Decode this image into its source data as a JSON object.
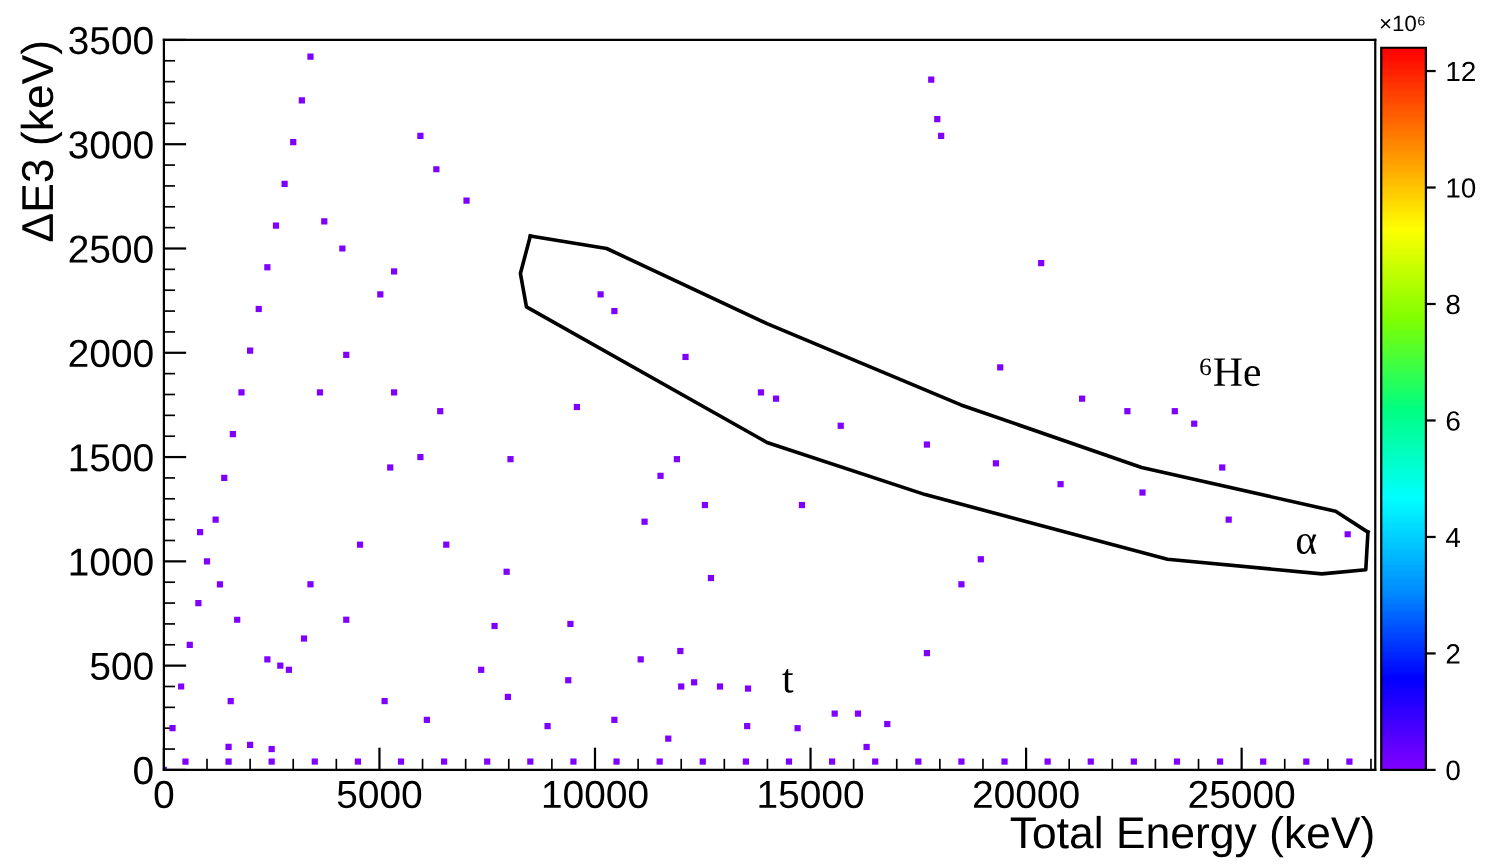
{
  "chart_data": {
    "type": "scatter",
    "xlabel": "Total Energy (keV)",
    "ylabel": "ΔE3 (keV)",
    "clabel": "×10⁶",
    "xlim": [
      0,
      28100
    ],
    "ylim": [
      0,
      3500
    ],
    "xticks": [
      0,
      5000,
      10000,
      15000,
      20000,
      25000
    ],
    "yticks": [
      0,
      500,
      1000,
      1500,
      2000,
      2500,
      3000,
      3500
    ],
    "clim": [
      0,
      12.4
    ],
    "cticks": [
      0,
      2,
      4,
      6,
      8,
      10,
      12
    ],
    "grid": false,
    "legend": false,
    "marker": "square",
    "series": [
      {
        "color": "#8000ff",
        "x": [
          0,
          200,
          400,
          600,
          800,
          1000,
          1200,
          1400,
          1600,
          1800,
          2000,
          2200,
          2400,
          2600,
          2800,
          3000,
          3200,
          3400
        ],
        "values": [
          0,
          200,
          400,
          600,
          800,
          1000,
          1200,
          1400,
          1610,
          1810,
          2010,
          2210,
          2410,
          2610,
          2810,
          3010,
          3210,
          3420
        ]
      },
      {
        "color": "#8000ff",
        "x": [
          500,
          1500,
          2500,
          3500,
          4500,
          5500,
          6500,
          7500,
          8500,
          9500,
          10500,
          11500,
          12500,
          13500,
          14500,
          15500,
          16500,
          17500,
          18500,
          19500,
          20500,
          21500,
          22500,
          23500,
          24500,
          25500,
          26500,
          27500
        ],
        "values": [
          40,
          40,
          40,
          40,
          40,
          40,
          40,
          40,
          40,
          40,
          40,
          40,
          40,
          40,
          40,
          40,
          40,
          40,
          40,
          40,
          40,
          40,
          40,
          40,
          40,
          40,
          40,
          40
        ]
      },
      {
        "color": "#8000ff",
        "x": [
          5950,
          6320,
          7020,
          3720,
          4140,
          5340,
          5020,
          4230,
          3620,
          5340,
          6410,
          5950
        ],
        "values": [
          3040,
          2880,
          2730,
          2630,
          2500,
          2390,
          2280,
          1990,
          1810,
          1810,
          1720,
          1500
        ]
      },
      {
        "color": "#8000ff",
        "x": [
          5250,
          8040,
          9580,
          11900,
          11520,
          12550,
          11150,
          12690,
          4550,
          6550,
          7950,
          9430
        ],
        "values": [
          1450,
          1490,
          1740,
          1490,
          1410,
          1270,
          1190,
          920,
          1080,
          1080,
          950,
          700
        ]
      },
      {
        "color": "#8000ff",
        "x": [
          7670,
          840,
          1300,
          1700,
          1550,
          3400,
          3250,
          4230,
          5120,
          6100,
          7360,
          7980
        ],
        "values": [
          690,
          1140,
          890,
          720,
          330,
          890,
          630,
          720,
          330,
          240,
          480,
          350
        ]
      },
      {
        "color": "#8000ff",
        "x": [
          8900,
          9380,
          10450,
          11060,
          11700,
          11980,
          13530,
          15560,
          16100,
          16780,
          14700,
          16300
        ],
        "values": [
          210,
          430,
          240,
          530,
          150,
          570,
          210,
          270,
          270,
          220,
          200,
          110
        ]
      },
      {
        "color": "#8000ff",
        "x": [
          2400,
          2700,
          2900,
          12000,
          12300,
          12900,
          13550,
          1500,
          2000,
          2500,
          17800,
          17940
        ],
        "values": [
          530,
          500,
          480,
          400,
          420,
          400,
          390,
          110,
          120,
          100,
          3310,
          3120
        ]
      },
      {
        "color": "#8000ff",
        "x": [
          18030,
          20350,
          18950,
          18500,
          17700,
          24550,
          24700,
          27460,
          14800,
          21300,
          19400,
          22350
        ],
        "values": [
          3040,
          2430,
          1010,
          890,
          560,
          1450,
          1200,
          1130,
          1270,
          1780,
          1930,
          1720
        ]
      },
      {
        "color": "#8000ff",
        "x": [
          23450,
          23900,
          15700,
          17700,
          19300,
          20800,
          22700,
          14200,
          13850,
          12100,
          10450,
          10130
        ],
        "values": [
          1720,
          1660,
          1650,
          1560,
          1470,
          1370,
          1330,
          1780,
          1810,
          1980,
          2200,
          2280
        ]
      },
      {
        "type": "line",
        "color": "#000000",
        "marker": "none",
        "line_style": "solid",
        "x": [
          8500,
          10270,
          13990,
          18490,
          22680,
          27180,
          27930
        ],
        "values": [
          2560,
          2500,
          2140,
          1750,
          1450,
          1240,
          1140
        ]
      },
      {
        "type": "line",
        "color": "#000000",
        "marker": "none",
        "line_style": "solid",
        "x": [
          8500,
          8270,
          8410,
          13990,
          17660,
          23280,
          26860,
          27880,
          27930
        ],
        "values": [
          2560,
          2380,
          2220,
          1570,
          1320,
          1010,
          940,
          960,
          1140
        ]
      }
    ],
    "annotations": [
      "⁶He",
      "α",
      "t"
    ]
  }
}
